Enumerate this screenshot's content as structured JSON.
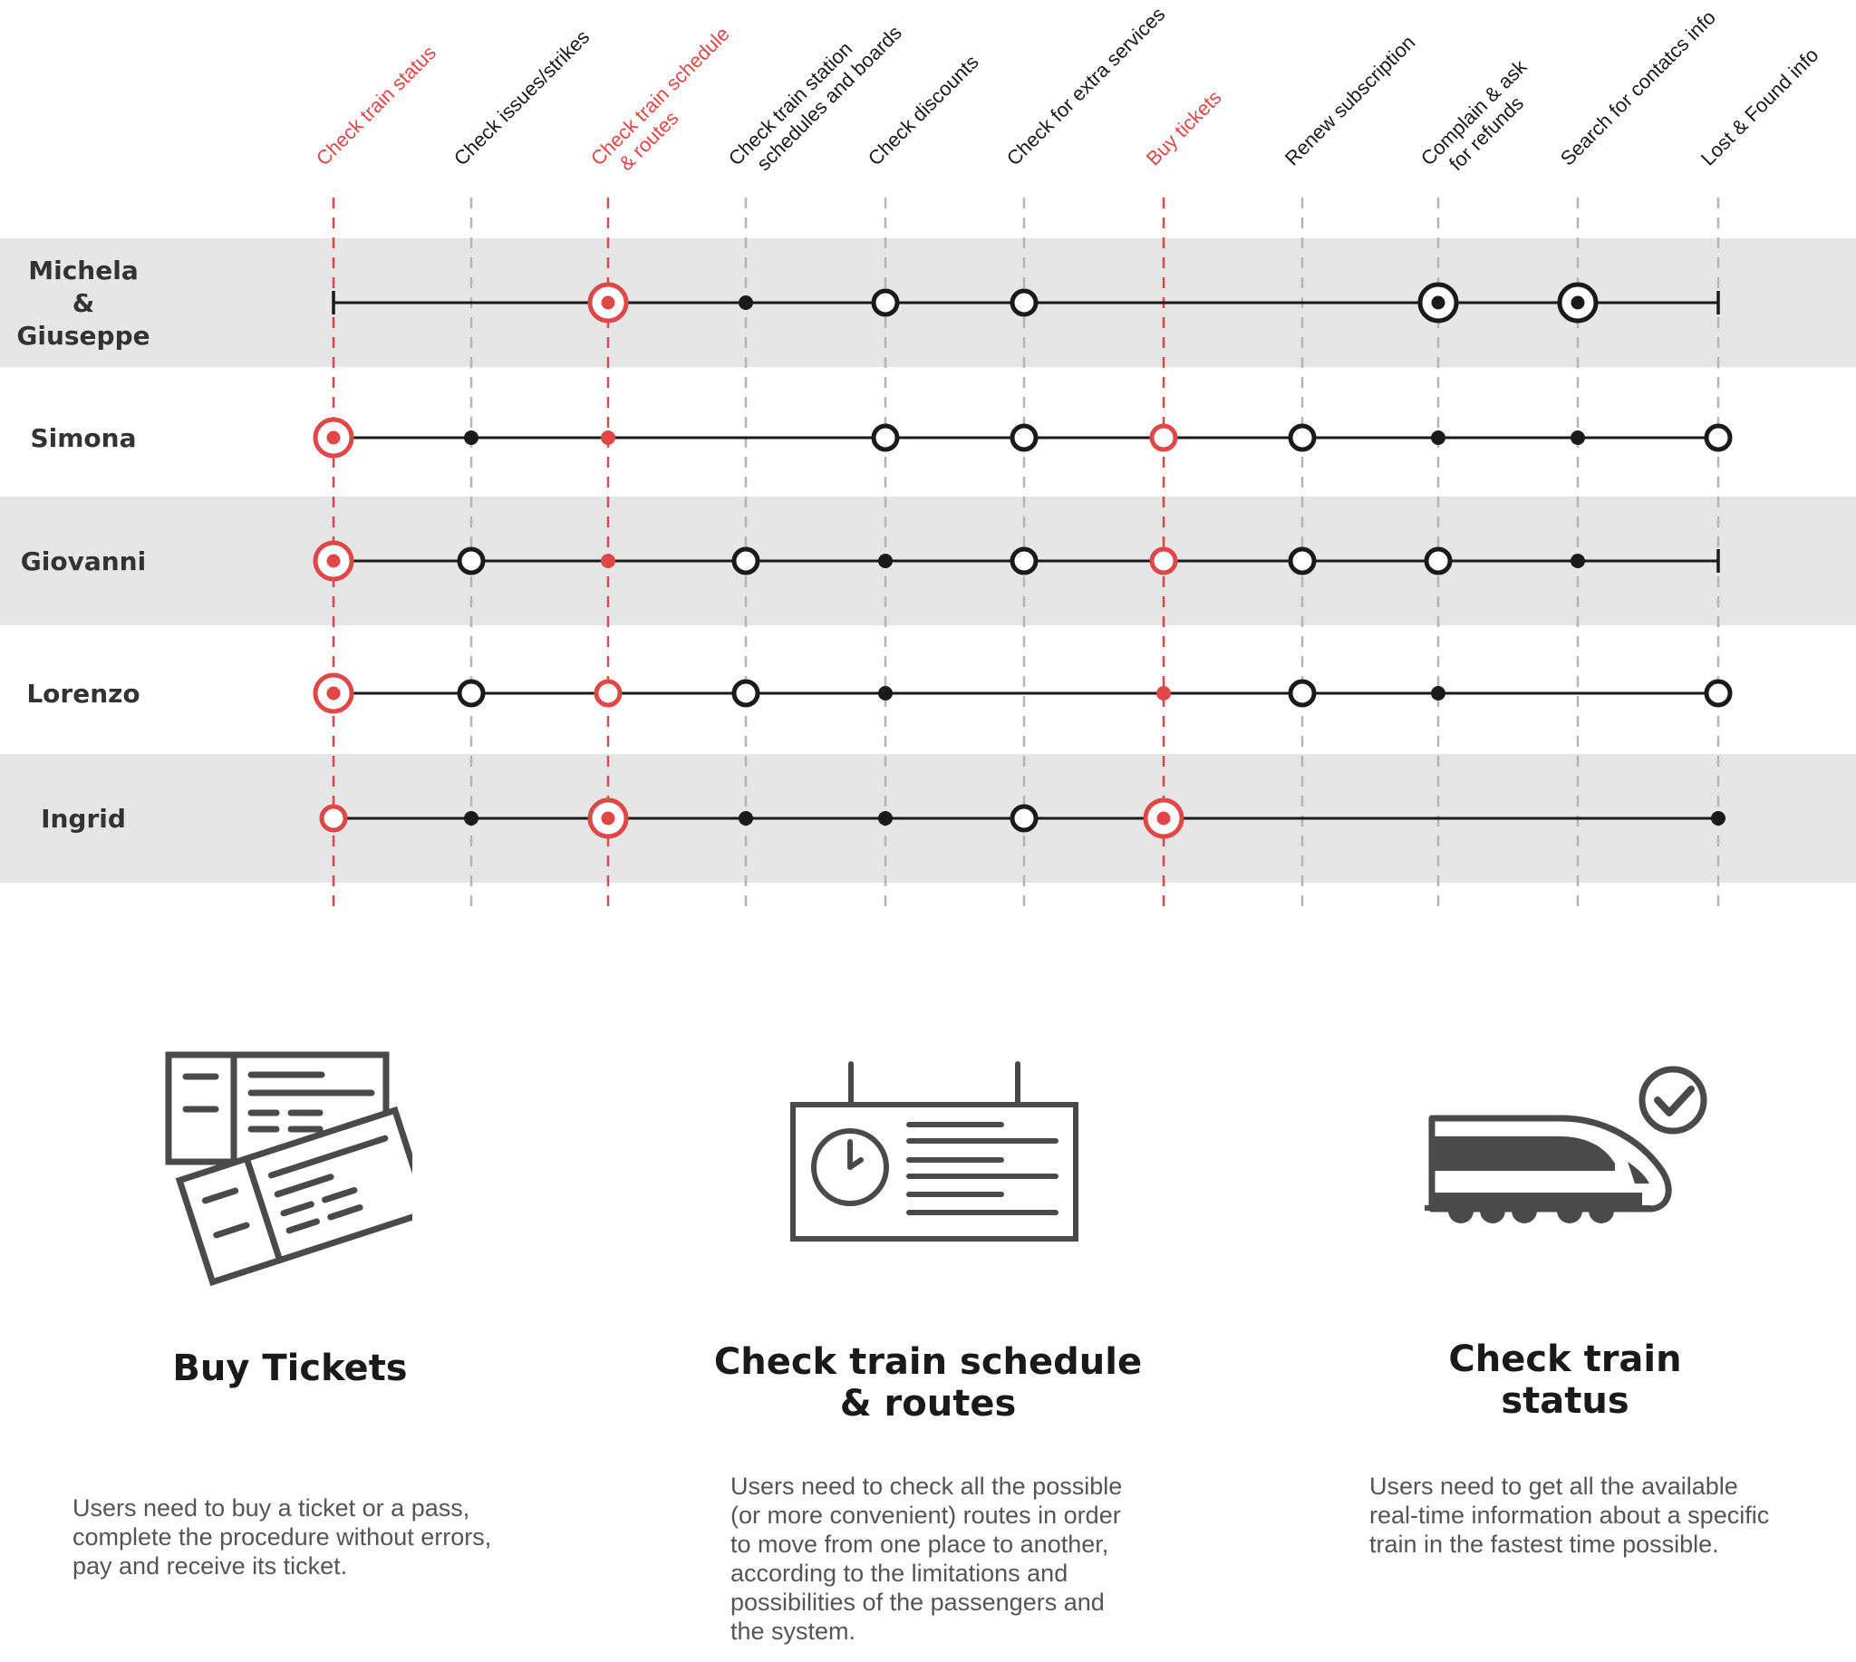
{
  "colors": {
    "accent": "#e04848",
    "ink": "#1a1a1a",
    "band": "#e6e6e6",
    "icon": "#4a4a4a",
    "guide": "#b5b5b5"
  },
  "tasks": [
    {
      "label": "Check train status",
      "highlight": true
    },
    {
      "label": "Check issues/strikes",
      "highlight": false
    },
    {
      "label": "Check train schedule\n& routes",
      "highlight": true
    },
    {
      "label": "Check train station\nschedules and boards",
      "highlight": false
    },
    {
      "label": "Check discounts",
      "highlight": false
    },
    {
      "label": "Check for extra services",
      "highlight": false
    },
    {
      "label": "Buy tickets",
      "highlight": true
    },
    {
      "label": "Renew subscription",
      "highlight": false
    },
    {
      "label": "Complain & ask\nfor refunds",
      "highlight": false
    },
    {
      "label": "Search for contatcs info",
      "highlight": false
    },
    {
      "label": "Lost & Found info",
      "highlight": false
    }
  ],
  "personas": [
    {
      "name": "Michela\n&\nGiuseppe",
      "band": true,
      "start": 0,
      "end": 10,
      "marks": [
        [
          "start",
          null
        ],
        null,
        [
          "target",
          "red"
        ],
        [
          "dot",
          "black"
        ],
        [
          "ring",
          "black"
        ],
        [
          "ring",
          "black"
        ],
        null,
        null,
        [
          "target",
          "black"
        ],
        [
          "target",
          "black"
        ],
        [
          "end",
          null
        ]
      ]
    },
    {
      "name": "Simona",
      "band": false,
      "start": 0,
      "end": 10,
      "marks": [
        [
          "target",
          "red"
        ],
        [
          "dot",
          "black"
        ],
        [
          "dot",
          "red"
        ],
        null,
        [
          "ring",
          "black"
        ],
        [
          "ring",
          "black"
        ],
        [
          "ring",
          "red"
        ],
        [
          "ring",
          "black"
        ],
        [
          "dot",
          "black"
        ],
        [
          "dot",
          "black"
        ],
        [
          "ring",
          "black"
        ]
      ]
    },
    {
      "name": "Giovanni",
      "band": true,
      "start": 0,
      "end": 10,
      "marks": [
        [
          "target",
          "red"
        ],
        [
          "ring",
          "black"
        ],
        [
          "dot",
          "red"
        ],
        [
          "ring",
          "black"
        ],
        [
          "dot",
          "black"
        ],
        [
          "ring",
          "black"
        ],
        [
          "ring",
          "red"
        ],
        [
          "ring",
          "black"
        ],
        [
          "ring",
          "black"
        ],
        [
          "dot",
          "black"
        ],
        [
          "end",
          null
        ]
      ]
    },
    {
      "name": "Lorenzo",
      "band": false,
      "start": 0,
      "end": 10,
      "marks": [
        [
          "target",
          "red"
        ],
        [
          "ring",
          "black"
        ],
        [
          "ring",
          "red"
        ],
        [
          "ring",
          "black"
        ],
        [
          "dot",
          "black"
        ],
        null,
        [
          "dot",
          "red"
        ],
        [
          "ring",
          "black"
        ],
        [
          "dot",
          "black"
        ],
        null,
        [
          "ring",
          "black"
        ]
      ]
    },
    {
      "name": "Ingrid",
      "band": true,
      "start": 0,
      "end": 10,
      "marks": [
        [
          "ring",
          "red"
        ],
        [
          "dot",
          "black"
        ],
        [
          "target",
          "red"
        ],
        [
          "dot",
          "black"
        ],
        [
          "dot",
          "black"
        ],
        [
          "ring",
          "black"
        ],
        [
          "target",
          "red"
        ],
        null,
        null,
        null,
        [
          "dot",
          "black"
        ]
      ]
    }
  ],
  "cards": [
    {
      "icon": "tickets-icon",
      "title": "Buy Tickets",
      "description": "Users need to buy a ticket or a pass,\ncomplete the procedure without errors,\npay and receive its ticket."
    },
    {
      "icon": "schedule-board-icon",
      "title": "Check train schedule\n& routes",
      "description": "Users need to check all the possible\n(or more convenient) routes in order\nto move from one place to another,\naccording to the limitations and\npossibilities of the passengers and\nthe system."
    },
    {
      "icon": "train-check-icon",
      "title": "Check train\nstatus",
      "description": "Users need to get all the available\nreal-time information about a specific\ntrain in the fastest time possible."
    }
  ]
}
